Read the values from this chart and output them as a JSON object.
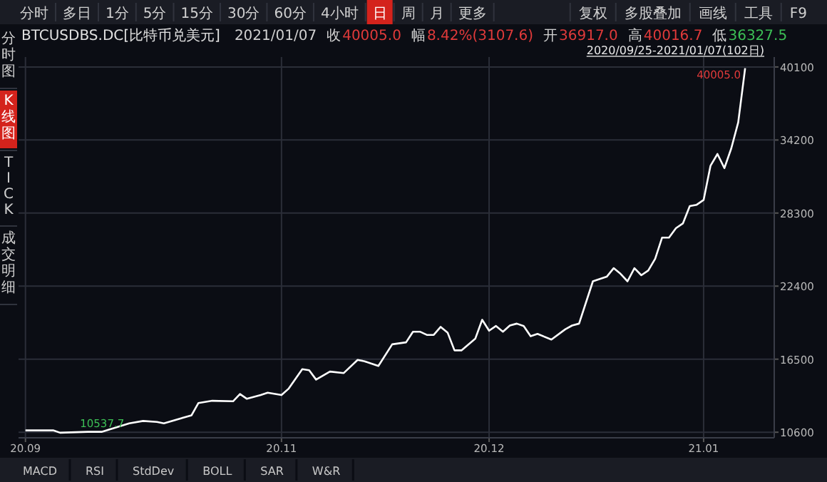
{
  "chart_data": {
    "type": "line",
    "title": "BTCUSDBS.DC[比特币兑美元]",
    "xlim": [
      "2020-09-24",
      "2021-01-11"
    ],
    "ylim": [
      10150,
      40900
    ],
    "xticks": [
      {
        "value": "2020-09-25",
        "label": "20.09"
      },
      {
        "value": "2020-11-01",
        "label": "20.11"
      },
      {
        "value": "2020-12-01",
        "label": "20.12"
      },
      {
        "value": "2021-01-01",
        "label": "21.01"
      }
    ],
    "yticks": [
      10600,
      16500,
      22400,
      28300,
      34200,
      40100
    ],
    "grid": true,
    "series": [
      {
        "color": "#ffffff",
        "x": [
          "2020-09-25",
          "2020-09-29",
          "2020-09-30",
          "2020-10-04",
          "2020-10-06",
          "2020-10-10",
          "2020-10-12",
          "2020-10-14",
          "2020-10-15",
          "2020-10-19",
          "2020-10-20",
          "2020-10-22",
          "2020-10-25",
          "2020-10-26",
          "2020-10-27",
          "2020-10-29",
          "2020-10-30",
          "2020-11-01",
          "2020-11-02",
          "2020-11-04",
          "2020-11-05",
          "2020-11-06",
          "2020-11-08",
          "2020-11-10",
          "2020-11-12",
          "2020-11-13",
          "2020-11-15",
          "2020-11-17",
          "2020-11-19",
          "2020-11-20",
          "2020-11-21",
          "2020-11-22",
          "2020-11-23",
          "2020-11-24",
          "2020-11-25",
          "2020-11-26",
          "2020-11-27",
          "2020-11-29",
          "2020-11-30",
          "2020-12-01",
          "2020-12-02",
          "2020-12-03",
          "2020-12-04",
          "2020-12-05",
          "2020-12-06",
          "2020-12-07",
          "2020-12-08",
          "2020-12-10",
          "2020-12-12",
          "2020-12-13",
          "2020-12-14",
          "2020-12-16",
          "2020-12-18",
          "2020-12-19",
          "2020-12-20",
          "2020-12-21",
          "2020-12-22",
          "2020-12-23",
          "2020-12-24",
          "2020-12-25",
          "2020-12-26",
          "2020-12-27",
          "2020-12-28",
          "2020-12-29",
          "2020-12-30",
          "2020-12-31",
          "2021-01-01",
          "2021-01-02",
          "2021-01-03",
          "2021-01-04",
          "2021-01-05",
          "2021-01-06",
          "2021-01-07"
        ],
        "values": [
          10750,
          10750,
          10560,
          10630,
          10630,
          11320,
          11510,
          11430,
          11320,
          11970,
          12960,
          13140,
          13100,
          13680,
          13300,
          13600,
          13790,
          13600,
          14100,
          15690,
          15610,
          14850,
          15500,
          15380,
          16440,
          16330,
          15950,
          17700,
          17860,
          18720,
          18720,
          18460,
          18460,
          19110,
          18650,
          17210,
          17210,
          18150,
          19680,
          18800,
          19180,
          18720,
          19220,
          19370,
          19180,
          18350,
          18540,
          18080,
          18910,
          19220,
          19370,
          22790,
          23160,
          23850,
          23390,
          22790,
          23850,
          23280,
          23660,
          24610,
          26320,
          26320,
          27080,
          27460,
          28860,
          28970,
          29360,
          32130,
          33070,
          31930,
          33530,
          35620,
          40005
        ]
      }
    ],
    "annotations": [
      {
        "text": "40005.0",
        "x": "2021-01-07",
        "y": 40005
      },
      {
        "text": "10537.7",
        "x": "2020-09-30",
        "y": 10537.7
      },
      "分时",
      "多日",
      "1分",
      "5分",
      "15分",
      "30分",
      "60分",
      "4小时",
      "日",
      "周",
      "月",
      "更多",
      "复权",
      "多股叠加",
      "画线",
      "工具",
      "F9",
      "2020/09/25-2021/01/07(102日)",
      "分时图",
      "K线图",
      "TICK",
      "成交明细",
      "MACD",
      "RSI",
      "StdDev",
      "BOLL",
      "SAR",
      "W&R",
      "2021/01/07",
      "收",
      "40005.0",
      "幅",
      "8.42%(3107.6)",
      "开",
      "36917.0",
      "高",
      "40016.7",
      "低",
      "36327.5"
    ]
  }
}
